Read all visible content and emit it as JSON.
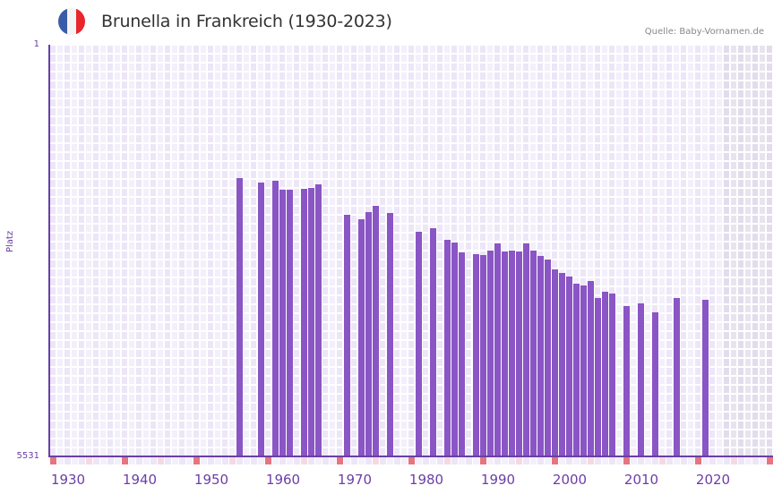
{
  "header": {
    "title": "Brunella in Frankreich (1930-2023)",
    "source": "Quelle: Baby-Vornamen.de",
    "flag_colors": [
      "#3a5ca8",
      "#f4f4f4",
      "#e8262c"
    ]
  },
  "colors": {
    "bar": "#8a55c4",
    "axis": "#6a3fa6",
    "grid_a": "#f3effb",
    "grid_b": "#ece6f7",
    "future_a": "#e8e4ef",
    "future_b": "#e2dcec",
    "marker_strong": "#e57580",
    "marker_light": "#f5d9e1"
  },
  "chart_data": {
    "type": "bar",
    "title": "Brunella in Frankreich (1930-2023)",
    "xlabel": "",
    "ylabel": "Platz",
    "y_inverted": true,
    "ylim": [
      5531,
      1
    ],
    "xlim": [
      1928,
      2028
    ],
    "x_ticks": [
      1930,
      1940,
      1950,
      1960,
      1970,
      1980,
      1990,
      2000,
      2010,
      2020
    ],
    "y_ticks": [
      1,
      5531
    ],
    "shaded_future_from": 2022,
    "grid": true,
    "legend": null,
    "x": [
      1954,
      1957,
      1959,
      1960,
      1961,
      1963,
      1964,
      1965,
      1969,
      1971,
      1972,
      1973,
      1975,
      1979,
      1981,
      1983,
      1984,
      1985,
      1987,
      1988,
      1989,
      1990,
      1991,
      1992,
      1993,
      1994,
      1995,
      1996,
      1997,
      1998,
      1999,
      2000,
      2001,
      2002,
      2003,
      2004,
      2005,
      2006,
      2008,
      2010,
      2012,
      2015,
      2019
    ],
    "values": [
      1791,
      1851,
      1827,
      1947,
      1947,
      1935,
      1923,
      1875,
      2283,
      2343,
      2247,
      2163,
      2259,
      2511,
      2463,
      2619,
      2655,
      2787,
      2811,
      2823,
      2763,
      2667,
      2775,
      2763,
      2775,
      2667,
      2763,
      2835,
      2883,
      3015,
      3063,
      3111,
      3207,
      3231,
      3171,
      3399,
      3315,
      3339,
      3507,
      3471,
      3591,
      3399,
      3423
    ],
    "series": [
      {
        "name": "Platz",
        "values": [
          1791,
          1851,
          1827,
          1947,
          1947,
          1935,
          1923,
          1875,
          2283,
          2343,
          2247,
          2163,
          2259,
          2511,
          2463,
          2619,
          2655,
          2787,
          2811,
          2823,
          2763,
          2667,
          2775,
          2763,
          2775,
          2667,
          2763,
          2835,
          2883,
          3015,
          3063,
          3111,
          3207,
          3231,
          3171,
          3399,
          3315,
          3339,
          3507,
          3471,
          3591,
          3399,
          3423
        ]
      }
    ]
  },
  "axis": {
    "ylabel": "Platz",
    "ytick_top": "1",
    "ytick_bottom": "5531",
    "xticks": [
      "1930",
      "1940",
      "1950",
      "1960",
      "1970",
      "1980",
      "1990",
      "2000",
      "2010",
      "2020"
    ]
  }
}
